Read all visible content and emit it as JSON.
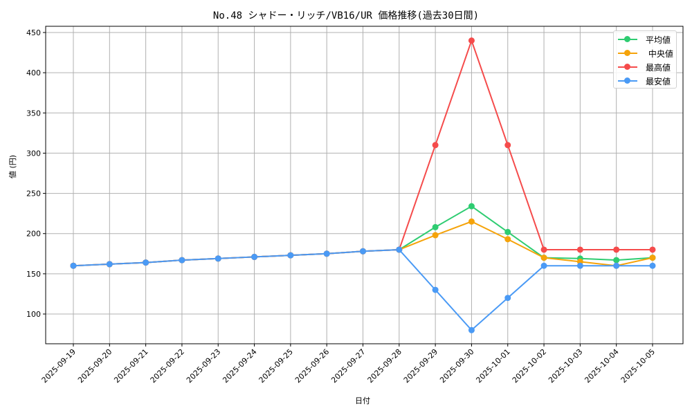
{
  "title": "No.48 シャドー・リッチ/VB16/UR 価格推移(過去30日間)",
  "xlabel": "日付",
  "ylabel": "値 (円)",
  "legend": [
    {
      "label": "平均値",
      "color": "#2ecc71"
    },
    {
      "label": " 中央値",
      "color": "#f5a30a"
    },
    {
      "label": "最高値",
      "color": "#f54b4b"
    },
    {
      "label": "最安値",
      "color": "#4a9af5"
    }
  ],
  "chart_data": {
    "type": "line",
    "title": "No.48 シャドー・リッチ/VB16/UR 価格推移(過去30日間)",
    "xlabel": "日付",
    "ylabel": "値 (円)",
    "ylim": [
      62,
      458
    ],
    "yticks": [
      100,
      150,
      200,
      250,
      300,
      350,
      400,
      450
    ],
    "grid": true,
    "legend_position": "upper right",
    "categories": [
      "2025-09-19",
      "2025-09-20",
      "2025-09-21",
      "2025-09-22",
      "2025-09-23",
      "2025-09-24",
      "2025-09-25",
      "2025-09-26",
      "2025-09-27",
      "2025-09-28",
      "2025-09-29",
      "2025-09-30",
      "2025-10-01",
      "2025-10-02",
      "2025-10-03",
      "2025-10-04",
      "2025-10-05"
    ],
    "series": [
      {
        "name": "平均値",
        "color": "#2ecc71",
        "values": [
          160,
          162,
          164,
          167,
          169,
          171,
          173,
          175,
          178,
          180,
          208,
          234,
          202,
          170,
          169,
          167,
          170
        ]
      },
      {
        "name": "中央値",
        "color": "#f5a30a",
        "values": [
          160,
          162,
          164,
          167,
          169,
          171,
          173,
          175,
          178,
          180,
          198,
          215,
          193,
          170,
          165,
          160,
          170
        ]
      },
      {
        "name": "最高値",
        "color": "#f54b4b",
        "values": [
          160,
          162,
          164,
          167,
          169,
          171,
          173,
          175,
          178,
          180,
          310,
          440,
          310,
          180,
          180,
          180,
          180
        ]
      },
      {
        "name": "最安値",
        "color": "#4a9af5",
        "values": [
          160,
          162,
          164,
          167,
          169,
          171,
          173,
          175,
          178,
          180,
          130,
          80,
          120,
          160,
          160,
          160,
          160
        ]
      }
    ]
  }
}
